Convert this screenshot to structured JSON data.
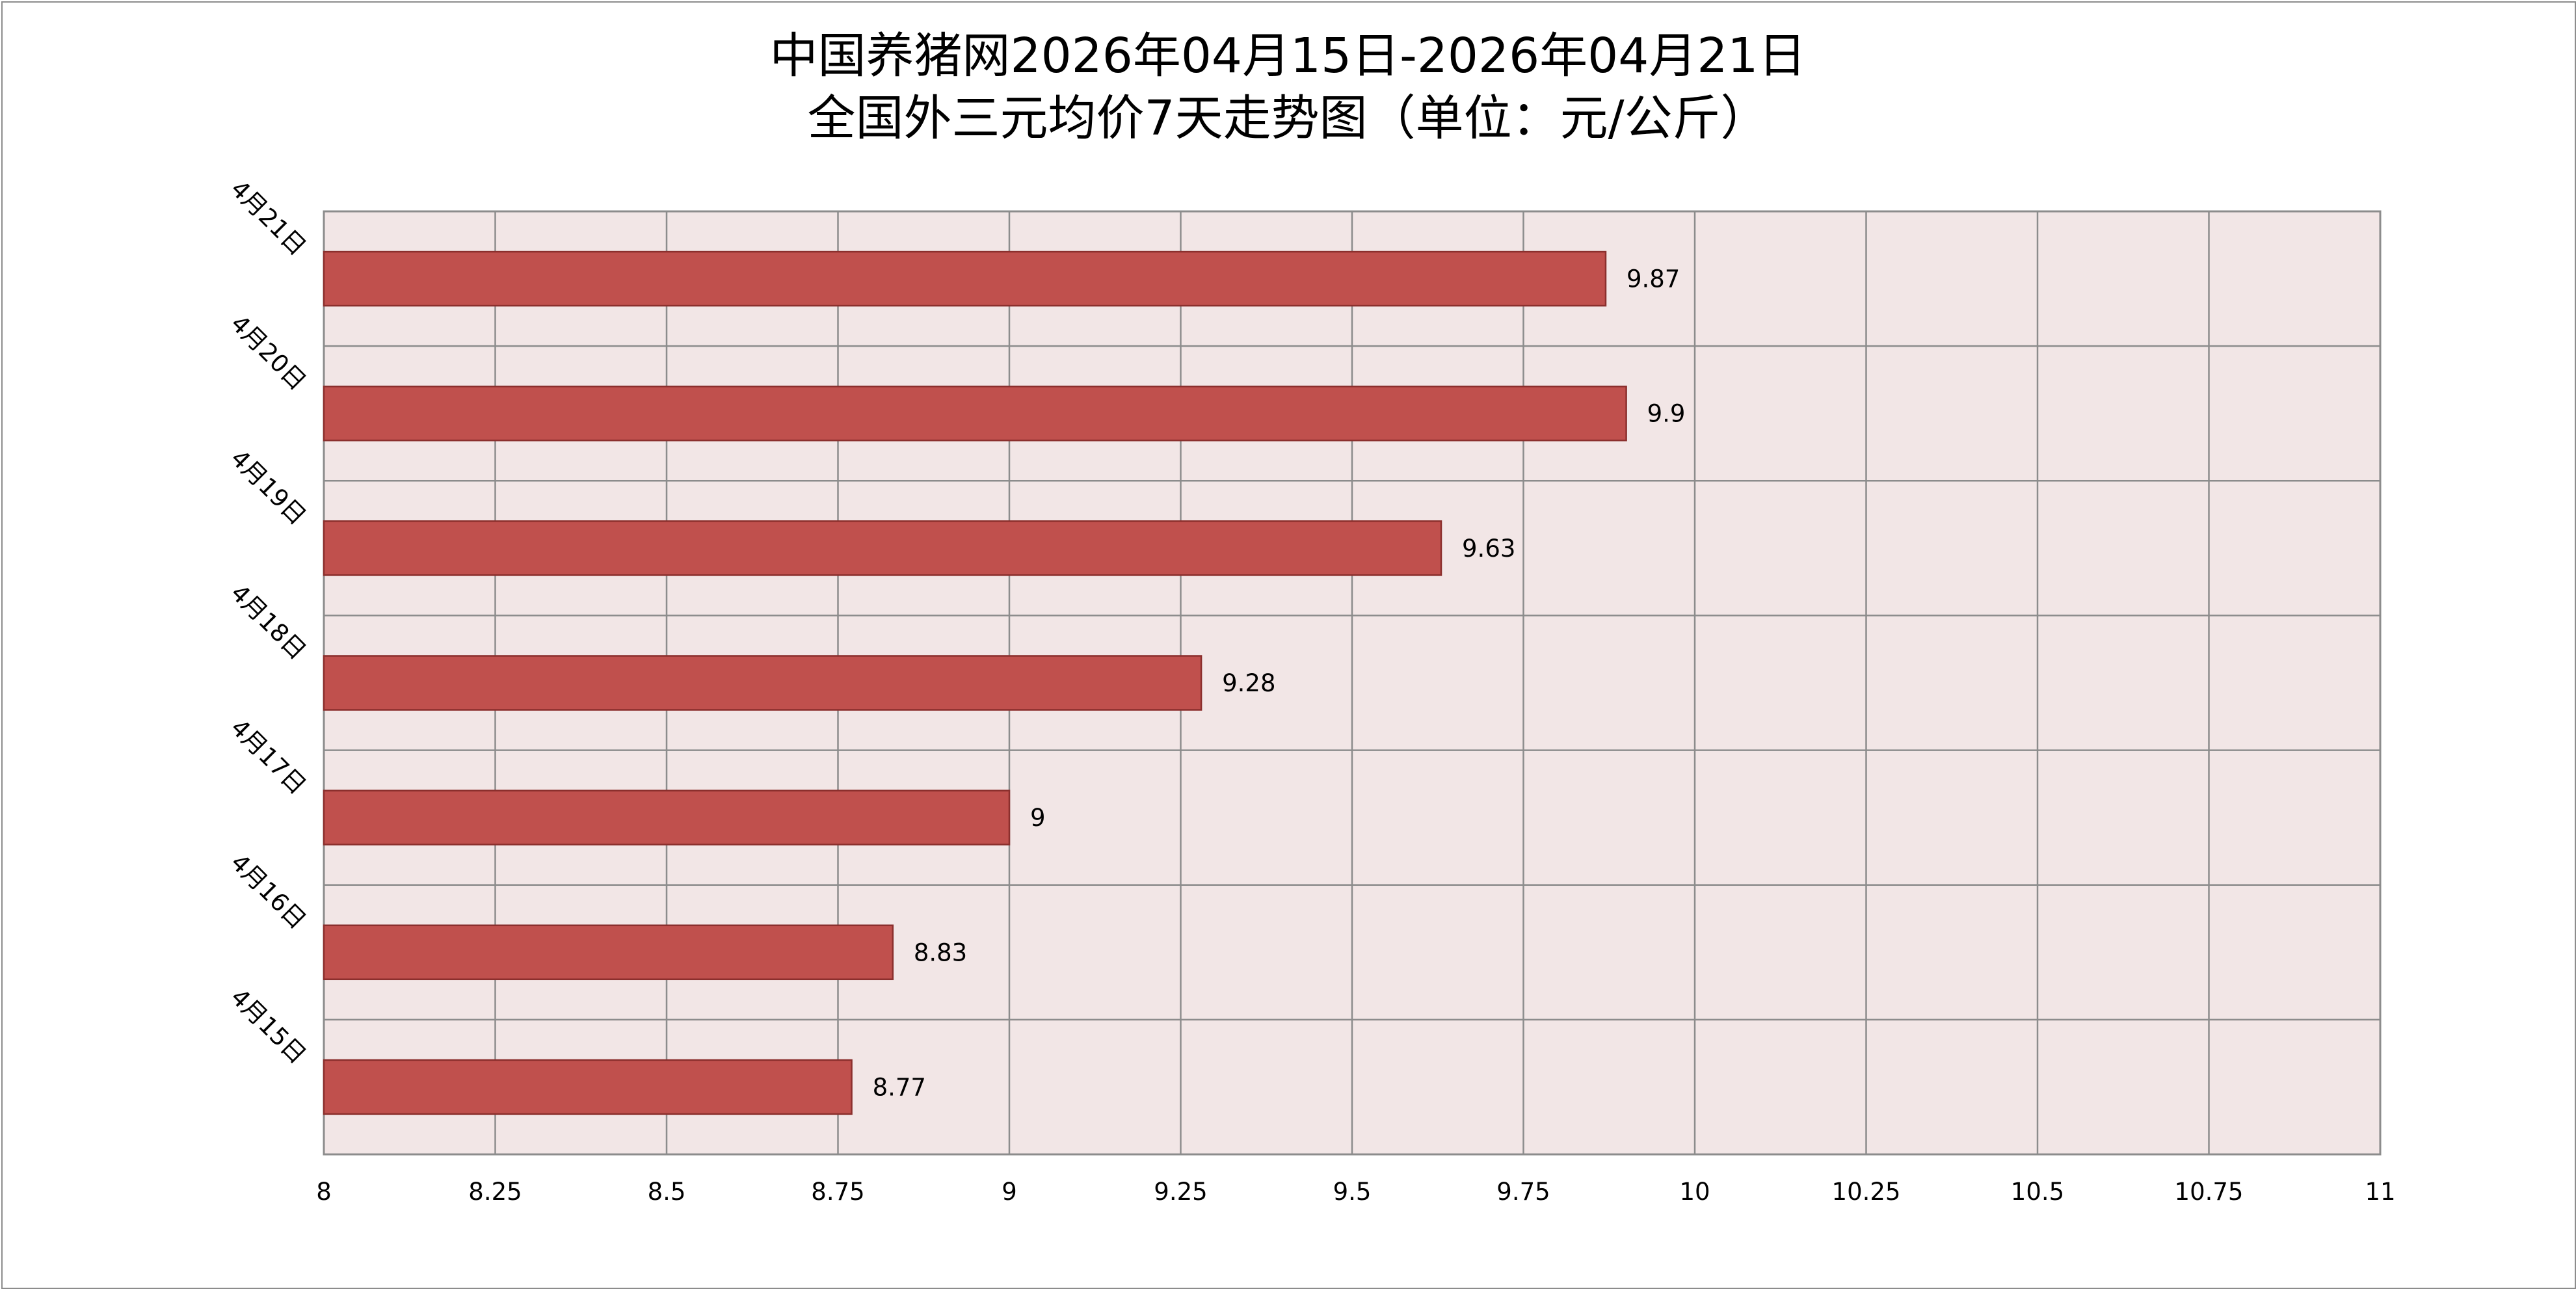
{
  "chart_data": {
    "type": "bar",
    "orientation": "horizontal",
    "title_lines": [
      "中国养猪网2026年04月15日-2026年04月21日",
      "全国外三元均价7天走势图（单位：元/公斤）"
    ],
    "categories": [
      "4月21日",
      "4月20日",
      "4月19日",
      "4月18日",
      "4月17日",
      "4月16日",
      "4月15日"
    ],
    "values": [
      9.87,
      9.9,
      9.63,
      9.28,
      9,
      8.83,
      8.77
    ],
    "value_labels": [
      "9.87",
      "9.9",
      "9.63",
      "9.28",
      "9",
      "8.83",
      "8.77"
    ],
    "xlim": [
      8,
      11
    ],
    "x_ticks": [
      8,
      8.25,
      8.5,
      8.75,
      9,
      9.25,
      9.5,
      9.75,
      10,
      10.25,
      10.5,
      10.75,
      11
    ],
    "x_tick_labels": [
      "8",
      "8.25",
      "8.5",
      "8.75",
      "9",
      "9.25",
      "9.5",
      "9.75",
      "10",
      "10.25",
      "10.5",
      "10.75",
      "11"
    ],
    "grid": true,
    "legend": "none",
    "colors": {
      "bar": "#c0504d",
      "bar_border": "#8b2f2d",
      "plot_background": "#f2e6e6",
      "grid": "#8c8c8c"
    }
  }
}
